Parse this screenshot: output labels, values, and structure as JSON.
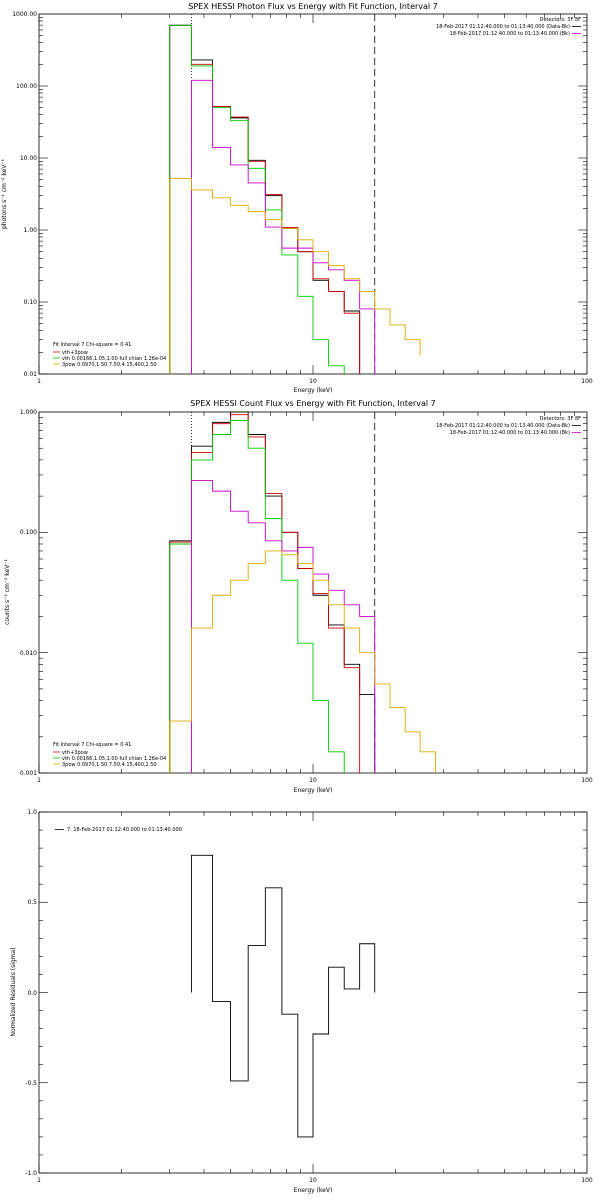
{
  "chart_data": [
    {
      "type": "line",
      "title": "SPEX HESSI Photon Flux vs Energy with Fit Function, Interval 7",
      "xlabel": "Energy (keV)",
      "ylabel": "photons s⁻¹ cm⁻² keV⁻¹",
      "xscale": "log",
      "yscale": "log",
      "xlim": [
        1,
        100
      ],
      "ylim": [
        0.01,
        1000
      ],
      "xticks": [
        "1",
        "10",
        "100"
      ],
      "yticks": [
        "0.01",
        "0.10",
        "1.00",
        "10.00",
        "100.00",
        "1000.00"
      ],
      "ytick_values": [
        0.01,
        0.1,
        1,
        10,
        100,
        1000
      ],
      "edges": [
        3.0,
        3.6,
        4.3,
        5.0,
        5.8,
        6.7,
        7.7,
        8.8,
        10.0,
        11.4,
        13.0,
        14.8,
        16.8,
        19.1,
        21.7,
        24.6
      ],
      "vlines": [
        {
          "x": 3.6,
          "style": "dotted"
        },
        {
          "x": 16.8,
          "style": "dashed"
        }
      ],
      "top_right": {
        "detectors": "Detectors: 3F 8F",
        "lines": [
          {
            "text": "18-Feb-2017 01:12:40.000 to 01:13:40.000 (Data-Bk)",
            "color": "#000000"
          },
          {
            "text": "18-Feb-2017 01:12:40.000 to 01:13:40.000 (Bk)",
            "color": "#cc00cc"
          }
        ]
      },
      "bottom_left": {
        "header": "Fit Interval  7     Chi-square = 0.41",
        "entries": [
          {
            "text": "vth+3pow",
            "color": "#cc0000"
          },
          {
            "text": "vth 0.00166,1.05,1.00  full chian 1.26e-04",
            "color": "#00cc00"
          },
          {
            "text": "3pow 0.0970,1.50,7.50,4.15,400,2.50",
            "color": "#ddaa00"
          }
        ]
      },
      "series": [
        {
          "id": "data",
          "color": "#000000",
          "values": [
            700,
            230,
            52,
            36,
            9.3,
            3.0,
            1.05,
            0.5,
            0.2,
            0.14,
            0.075
          ]
        },
        {
          "id": "fit",
          "color": "#cc0000",
          "values": [
            690,
            200,
            52,
            37,
            9.0,
            3.1,
            1.08,
            0.5,
            0.21,
            0.14,
            0.07
          ]
        },
        {
          "id": "thermal",
          "color": "#00cc00",
          "values": [
            690,
            190,
            50,
            33,
            7.2,
            1.9,
            0.45,
            0.12,
            0.03,
            0.013
          ]
        },
        {
          "id": "bk",
          "color": "#cc00cc",
          "values": [
            null,
            120,
            14,
            8.0,
            4.5,
            1.1,
            0.56,
            0.56,
            0.35,
            0.28,
            0.2,
            0.08
          ]
        },
        {
          "id": "pow",
          "color": "#ddaa00",
          "values": [
            5.2,
            3.6,
            2.8,
            2.2,
            1.8,
            1.4,
            1.05,
            0.73,
            0.5,
            0.32,
            0.21,
            0.14,
            0.08,
            0.048,
            0.03,
            0.018
          ]
        }
      ]
    },
    {
      "type": "line",
      "title": "SPEX HESSI Count Flux vs Energy with Fit Function, Interval 7",
      "xlabel": "Energy (keV)",
      "ylabel": "counts s⁻¹ cm⁻² keV⁻¹",
      "xscale": "log",
      "yscale": "log",
      "xlim": [
        1,
        100
      ],
      "ylim": [
        0.001,
        1
      ],
      "xticks": [
        "1",
        "10",
        "100"
      ],
      "yticks": [
        "0.001",
        "0.010",
        "0.100",
        "1.000"
      ],
      "ytick_values": [
        0.001,
        0.01,
        0.1,
        1
      ],
      "edges": [
        3.0,
        3.6,
        4.3,
        5.0,
        5.8,
        6.7,
        7.7,
        8.8,
        10.0,
        11.4,
        13.0,
        14.8,
        16.8,
        19.1,
        21.7,
        24.6,
        28.0
      ],
      "vlines": [
        {
          "x": 3.6,
          "style": "dotted"
        },
        {
          "x": 16.8,
          "style": "dashed"
        }
      ],
      "top_right": {
        "detectors": "Detectors: 3F 8F",
        "lines": [
          {
            "text": "18-Feb-2017 01:12:40.000 to 01:13:40.000 (Data-Bk)",
            "color": "#000000"
          },
          {
            "text": "18-Feb-2017 01:12:40.000 to 01:13:40.000 (Bk)",
            "color": "#cc00cc"
          }
        ]
      },
      "bottom_left": {
        "header": "Fit Interval  7     Chi-square = 0.41",
        "entries": [
          {
            "text": "vth+3pow",
            "color": "#cc0000"
          },
          {
            "text": "vth 0.00166,1.05,1.00  full chian 1.26e-04",
            "color": "#00cc00"
          },
          {
            "text": "3pow 0.0970,1.50,7.50,4.15,400,2.50",
            "color": "#ddaa00"
          }
        ]
      },
      "series": [
        {
          "id": "data",
          "color": "#000000",
          "values": [
            0.085,
            0.52,
            0.82,
            1.0,
            0.65,
            0.2,
            0.1,
            0.05,
            0.03,
            0.017,
            0.008,
            0.0045
          ]
        },
        {
          "id": "fit",
          "color": "#cc0000",
          "values": [
            0.083,
            0.46,
            0.8,
            0.95,
            0.62,
            0.21,
            0.1,
            0.05,
            0.031,
            0.016,
            0.0075
          ]
        },
        {
          "id": "thermal",
          "color": "#00cc00",
          "values": [
            0.08,
            0.4,
            0.65,
            0.85,
            0.5,
            0.13,
            0.04,
            0.012,
            0.004,
            0.0015
          ]
        },
        {
          "id": "bk",
          "color": "#cc00cc",
          "values": [
            null,
            0.27,
            0.22,
            0.15,
            0.12,
            0.085,
            0.07,
            0.075,
            0.045,
            0.033,
            0.025,
            0.02
          ]
        },
        {
          "id": "pow",
          "color": "#ddaa00",
          "values": [
            0.0027,
            0.016,
            0.03,
            0.04,
            0.055,
            0.07,
            0.065,
            0.055,
            0.04,
            0.025,
            0.016,
            0.01,
            0.0055,
            0.0035,
            0.0022,
            0.0015,
            0.001
          ]
        }
      ]
    },
    {
      "type": "line",
      "title": "",
      "xlabel": "Energy (keV)",
      "ylabel": "Normalized Residuals (sigma)",
      "xscale": "log",
      "yscale": "linear",
      "xlim": [
        1,
        100
      ],
      "ylim": [
        -1.0,
        1.0
      ],
      "xticks": [
        "1",
        "10",
        "100"
      ],
      "yticks": [
        "-1.0",
        "-0.5",
        "0.0",
        "0.5",
        "1.0"
      ],
      "ytick_values": [
        -1.0,
        -0.5,
        0.0,
        0.5,
        1.0
      ],
      "legend": "7. 18-Feb-2017 01:12:40.000 to 01:13:40.000",
      "edges": [
        3.6,
        4.3,
        5.0,
        5.8,
        6.7,
        7.7,
        8.8,
        10.0,
        11.4,
        13.0,
        14.8,
        16.8
      ],
      "series": [
        {
          "id": "residuals",
          "color": "#000000",
          "values": [
            0.76,
            -0.05,
            -0.49,
            0.26,
            0.58,
            -0.12,
            -0.8,
            -0.23,
            0.14,
            0.02,
            0.27
          ]
        }
      ]
    }
  ]
}
